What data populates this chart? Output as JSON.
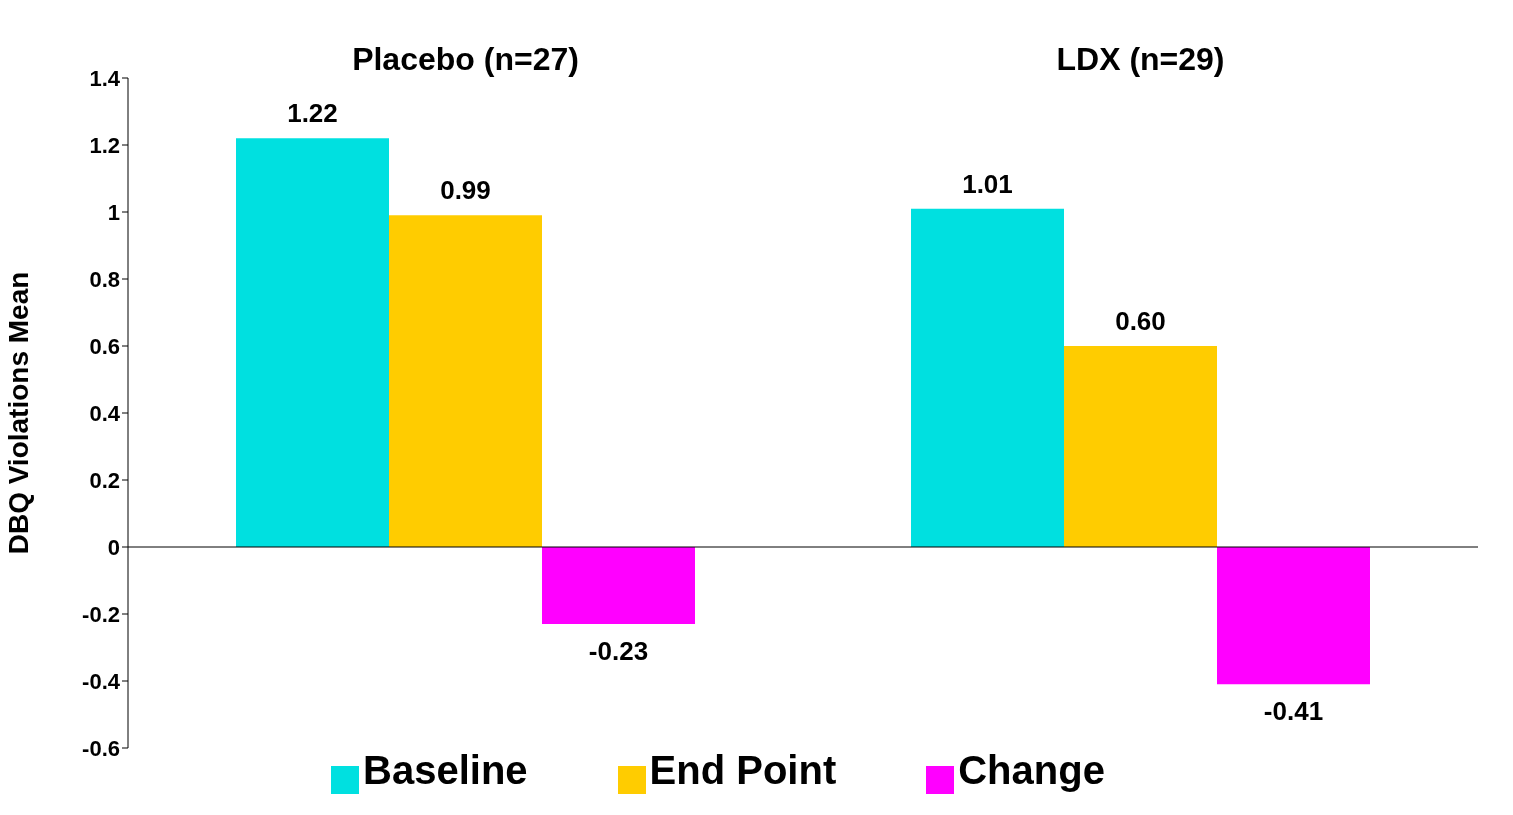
{
  "chart_data": {
    "type": "bar",
    "categories": [
      "Placebo (n=27)",
      "LDX (n=29)"
    ],
    "ylabel": "DBQ Violations Mean",
    "ylim": [
      -0.6,
      1.4
    ],
    "yticks": [
      -0.6,
      -0.4,
      -0.2,
      0,
      0.2,
      0.4,
      0.6,
      0.8,
      1,
      1.2,
      1.4
    ],
    "series": [
      {
        "name": "Baseline",
        "color": "#00e0e0",
        "values": [
          1.22,
          1.01
        ],
        "value_labels": [
          "1.22",
          "1.01"
        ]
      },
      {
        "name": "End Point",
        "color": "#ffcc00",
        "values": [
          0.99,
          0.6
        ],
        "value_labels": [
          "0.99",
          "0.60"
        ]
      },
      {
        "name": "Change",
        "color": "#ff00ff",
        "values": [
          -0.23,
          -0.41
        ],
        "value_labels": [
          "-0.23",
          "-0.41"
        ]
      }
    ],
    "legend": "bottom"
  }
}
